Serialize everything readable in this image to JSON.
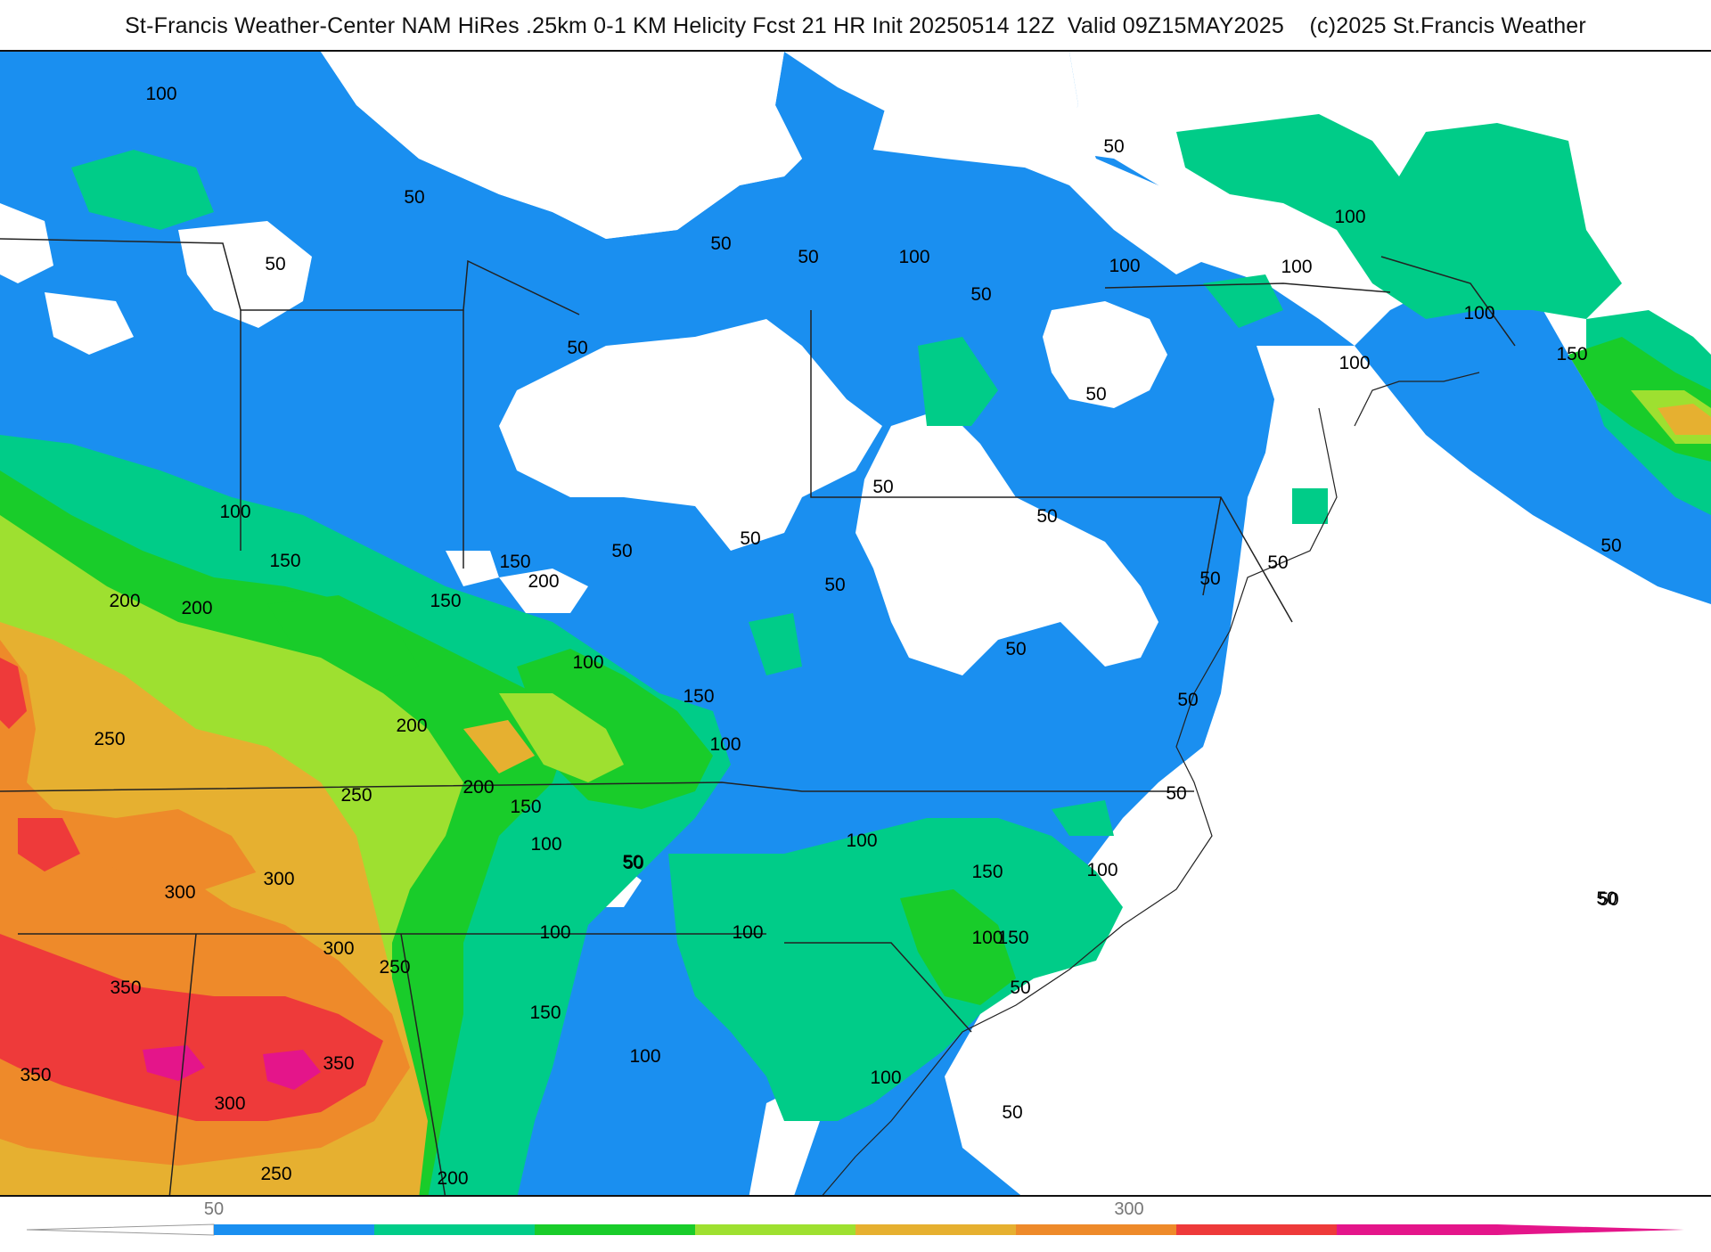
{
  "header": {
    "title": "St-Francis Weather-Center NAM HiRes .25km 0-1 KM Helicity Fcst 21 HR Init 20250514 12Z  Valid 09Z15MAY2025    (c)2025 St.Francis Weather"
  },
  "palette": {
    "background": "#ffffff",
    "band_50_100": "#1a8ff0",
    "band_100_150": "#00cc88",
    "band_150_200": "#19cc2a",
    "band_200_250": "#9ee030",
    "band_250_300": "#e6b030",
    "band_300_350": "#ee8a2a",
    "band_350_400": "#ee3a3a",
    "band_400_plus": "#e4158a",
    "border": "#222222"
  },
  "legend": {
    "ticks": [
      {
        "label": "50"
      },
      {
        "label": "300"
      }
    ],
    "bands": [
      "#1a8ff0",
      "#00cc88",
      "#19cc2a",
      "#9ee030",
      "#e6b030",
      "#ee8a2a",
      "#ee3a3a",
      "#e4158a"
    ]
  },
  "contour_labels": [
    {
      "text": "100"
    },
    {
      "text": "50"
    },
    {
      "text": "50"
    },
    {
      "text": "50"
    },
    {
      "text": "50"
    },
    {
      "text": "50"
    },
    {
      "text": "50"
    },
    {
      "text": "100"
    },
    {
      "text": "50"
    },
    {
      "text": "100"
    },
    {
      "text": "100"
    },
    {
      "text": "100"
    },
    {
      "text": "100"
    },
    {
      "text": "150"
    },
    {
      "text": "100"
    },
    {
      "text": "50"
    },
    {
      "text": "50"
    },
    {
      "text": "50"
    },
    {
      "text": "50"
    },
    {
      "text": "50"
    },
    {
      "text": "50"
    },
    {
      "text": "50"
    },
    {
      "text": "100"
    },
    {
      "text": "150"
    },
    {
      "text": "200"
    },
    {
      "text": "200"
    },
    {
      "text": "150"
    },
    {
      "text": "150"
    },
    {
      "text": "200"
    },
    {
      "text": "100"
    },
    {
      "text": "150"
    },
    {
      "text": "200"
    },
    {
      "text": "50"
    },
    {
      "text": "50"
    },
    {
      "text": "50"
    },
    {
      "text": "50"
    },
    {
      "text": "50"
    },
    {
      "text": "50"
    },
    {
      "text": "250"
    },
    {
      "text": "250"
    },
    {
      "text": "200"
    },
    {
      "text": "150"
    },
    {
      "text": "100"
    },
    {
      "text": "100"
    },
    {
      "text": "300"
    },
    {
      "text": "300"
    },
    {
      "text": "300"
    },
    {
      "text": "100"
    },
    {
      "text": "50"
    },
    {
      "text": "100"
    },
    {
      "text": "150"
    },
    {
      "text": "100"
    },
    {
      "text": "100"
    },
    {
      "text": "100"
    },
    {
      "text": "150"
    },
    {
      "text": "250"
    },
    {
      "text": "350"
    },
    {
      "text": "150"
    },
    {
      "text": "350"
    },
    {
      "text": "350"
    },
    {
      "text": "300"
    },
    {
      "text": "100"
    },
    {
      "text": "50"
    },
    {
      "text": "50"
    },
    {
      "text": "50"
    },
    {
      "text": "100"
    },
    {
      "text": "250"
    },
    {
      "text": "200"
    },
    {
      "text": "50"
    }
  ]
}
